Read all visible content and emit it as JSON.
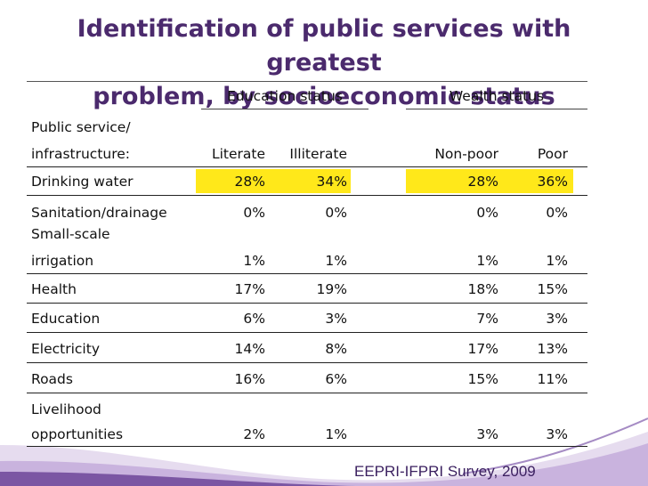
{
  "title": {
    "line1": "Identification of public services with greatest",
    "line2": "problem, by socioeconomic status"
  },
  "headers": {
    "education_group": "Education status",
    "wealth_group": "Wealth status",
    "service_line1": "Public service/",
    "service_line2": "infrastructure:",
    "literate": "Literate",
    "illiterate": "Illiterate",
    "non_poor": "Non-poor",
    "poor": "Poor"
  },
  "rows": [
    {
      "label": [
        "Drinking water"
      ],
      "literate": "28%",
      "illiterate": "34%",
      "non_poor": "28%",
      "poor": "36%"
    },
    {
      "label": [
        "Sanitation/drainage"
      ],
      "literate": "0%",
      "illiterate": "0%",
      "non_poor": "0%",
      "poor": "0%"
    },
    {
      "label": [
        "Small-scale",
        "irrigation"
      ],
      "literate": "1%",
      "illiterate": "1%",
      "non_poor": "1%",
      "poor": "1%"
    },
    {
      "label": [
        "Health"
      ],
      "literate": "17%",
      "illiterate": "19%",
      "non_poor": "18%",
      "poor": "15%"
    },
    {
      "label": [
        "Education"
      ],
      "literate": "6%",
      "illiterate": "3%",
      "non_poor": "7%",
      "poor": "3%"
    },
    {
      "label": [
        "Electricity"
      ],
      "literate": "14%",
      "illiterate": "8%",
      "non_poor": "17%",
      "poor": "13%"
    },
    {
      "label": [
        "Roads"
      ],
      "literate": "16%",
      "illiterate": "6%",
      "non_poor": "15%",
      "poor": "11%"
    },
    {
      "label": [
        "Livelihood",
        "opportunities"
      ],
      "literate": "2%",
      "illiterate": "1%",
      "non_poor": "3%",
      "poor": "3%"
    }
  ],
  "highlight_color": "#ffe81a",
  "footer": "EEPRI-IFPRI Survey, 2009"
}
